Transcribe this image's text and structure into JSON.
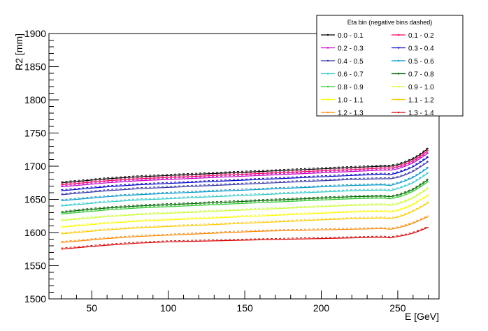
{
  "chart_data": {
    "type": "line",
    "xlabel": "E [GeV]",
    "ylabel": "R2 [mm]",
    "xlim": [
      22,
      277
    ],
    "ylim": [
      1500,
      1900
    ],
    "x_ticks": [
      50,
      100,
      150,
      200,
      250
    ],
    "y_ticks": [
      1500,
      1550,
      1600,
      1650,
      1700,
      1750,
      1800,
      1850,
      1900
    ],
    "legend": {
      "title": "Eta bin (negative bins dashed)",
      "placement": "top-right",
      "columns": 2
    },
    "x": [
      30,
      40,
      60,
      80,
      100,
      120,
      140,
      160,
      180,
      200,
      220,
      240,
      245,
      250,
      255,
      260,
      265,
      270
    ],
    "series": [
      {
        "name": "0.0  -  0.1",
        "color": "#000000",
        "values": [
          1675,
          1677,
          1681,
          1684,
          1686,
          1688,
          1690,
          1692,
          1694,
          1696,
          1698,
          1700,
          1700,
          1702,
          1706,
          1711,
          1718,
          1727
        ]
      },
      {
        "name": "0.1  -  0.2",
        "color": "#ff0066",
        "values": [
          1672,
          1674,
          1678,
          1681,
          1683,
          1685,
          1687,
          1689,
          1691,
          1693,
          1695,
          1697,
          1697,
          1699,
          1703,
          1708,
          1715,
          1724
        ]
      },
      {
        "name": "0.2  -  0.3",
        "color": "#cc00cc",
        "values": [
          1669,
          1671,
          1675,
          1678,
          1680,
          1682,
          1684,
          1686,
          1688,
          1690,
          1692,
          1694,
          1694,
          1696,
          1700,
          1705,
          1712,
          1720
        ]
      },
      {
        "name": "0.3  -  0.4",
        "color": "#0000cc",
        "values": [
          1663,
          1665,
          1669,
          1672,
          1674,
          1676,
          1678,
          1680,
          1682,
          1684,
          1686,
          1688,
          1687,
          1690,
          1694,
          1699,
          1706,
          1714
        ]
      },
      {
        "name": "0.4  -  0.5",
        "color": "#3333aa",
        "values": [
          1657,
          1659,
          1663,
          1666,
          1668,
          1670,
          1672,
          1674,
          1676,
          1678,
          1680,
          1681,
          1681,
          1683,
          1687,
          1692,
          1699,
          1707
        ]
      },
      {
        "name": "0.5  -  0.6",
        "color": "#0099cc",
        "values": [
          1648,
          1650,
          1654,
          1657,
          1659,
          1661,
          1663,
          1665,
          1667,
          1669,
          1671,
          1672,
          1671,
          1674,
          1678,
          1683,
          1690,
          1698
        ]
      },
      {
        "name": "0.6  -  0.7",
        "color": "#33cccc",
        "values": [
          1640,
          1642,
          1646,
          1649,
          1651,
          1653,
          1655,
          1657,
          1659,
          1661,
          1663,
          1664,
          1663,
          1666,
          1670,
          1675,
          1682,
          1690
        ]
      },
      {
        "name": "0.7  -  0.8",
        "color": "#006600",
        "values": [
          1630,
          1633,
          1637,
          1640,
          1642,
          1644,
          1646,
          1648,
          1650,
          1652,
          1654,
          1655,
          1654,
          1656,
          1660,
          1665,
          1672,
          1680
        ]
      },
      {
        "name": "0.8  -  0.9",
        "color": "#33cc33",
        "values": [
          1628,
          1630,
          1634,
          1637,
          1639,
          1641,
          1643,
          1645,
          1647,
          1649,
          1651,
          1652,
          1651,
          1653,
          1657,
          1662,
          1669,
          1677
        ]
      },
      {
        "name": "0.9  -  1.0",
        "color": "#ccff33",
        "values": [
          1618,
          1620,
          1624,
          1627,
          1629,
          1631,
          1633,
          1635,
          1637,
          1639,
          1641,
          1642,
          1641,
          1643,
          1647,
          1652,
          1659,
          1667
        ]
      },
      {
        "name": "1.0  -  1.1",
        "color": "#ffff00",
        "values": [
          1608,
          1610,
          1614,
          1617,
          1619,
          1621,
          1623,
          1625,
          1627,
          1629,
          1631,
          1632,
          1631,
          1633,
          1637,
          1642,
          1649,
          1656
        ]
      },
      {
        "name": "1.1  -  1.2",
        "color": "#ffcc00",
        "values": [
          1598,
          1600,
          1604,
          1607,
          1609,
          1611,
          1613,
          1615,
          1617,
          1619,
          1621,
          1622,
          1621,
          1623,
          1627,
          1632,
          1638,
          1645
        ]
      },
      {
        "name": "1.2  -  1.3",
        "color": "#ff8800",
        "values": [
          1585,
          1587,
          1591,
          1594,
          1596,
          1598,
          1600,
          1602,
          1603,
          1604,
          1605,
          1606,
          1605,
          1607,
          1610,
          1614,
          1619,
          1624
        ]
      },
      {
        "name": "1.3  -  1.4",
        "color": "#dd0000",
        "values": [
          1575,
          1577,
          1581,
          1584,
          1586,
          1587,
          1588,
          1589,
          1590,
          1591,
          1592,
          1593,
          1592,
          1594,
          1596,
          1599,
          1603,
          1608
        ]
      }
    ]
  }
}
